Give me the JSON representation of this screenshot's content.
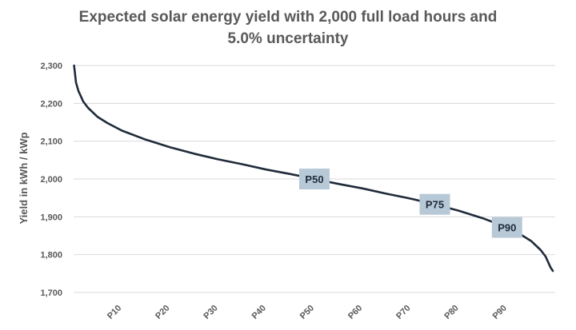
{
  "chart_data": {
    "type": "line",
    "title_lines": [
      "Expected solar energy yield with 2,000 full load hours and",
      "5.0% uncertainty"
    ],
    "xlabel": "",
    "ylabel": "Yield in kWh / kWp",
    "ylim": [
      1700,
      2300
    ],
    "y_ticks": [
      1700,
      1800,
      1900,
      2000,
      2100,
      2200,
      2300
    ],
    "y_tick_labels": [
      "1,700",
      "1,800",
      "1,900",
      "2,000",
      "2,100",
      "2,200",
      "2,300"
    ],
    "xlim": [
      0,
      100
    ],
    "x_ticks": [
      10,
      20,
      30,
      40,
      50,
      60,
      70,
      80,
      90
    ],
    "x_tick_labels": [
      "P10",
      "P20",
      "P30",
      "P40",
      "P50",
      "P60",
      "P70",
      "P80",
      "P90"
    ],
    "grid": true,
    "series": [
      {
        "color": "#1f2a3a",
        "x": [
          0.1,
          0.5,
          1,
          2,
          3,
          5,
          7,
          10,
          15,
          20,
          25,
          30,
          35,
          40,
          45,
          50,
          55,
          60,
          65,
          70,
          75,
          80,
          85,
          90,
          93,
          95,
          97,
          98,
          99,
          99.5
        ],
        "y": [
          2300,
          2255,
          2233,
          2205,
          2188,
          2164,
          2148,
          2128,
          2104,
          2084,
          2067,
          2052,
          2039,
          2025,
          2013,
          2000,
          1987,
          1975,
          1961,
          1948,
          1933,
          1916,
          1896,
          1872,
          1852,
          1836,
          1812,
          1795,
          1767,
          1757
        ]
      }
    ],
    "annotations": [
      {
        "label": "P50",
        "x": 50,
        "y": 2000
      },
      {
        "label": "P75",
        "x": 75,
        "y": 1933
      },
      {
        "label": "P90",
        "x": 90,
        "y": 1872
      }
    ]
  }
}
